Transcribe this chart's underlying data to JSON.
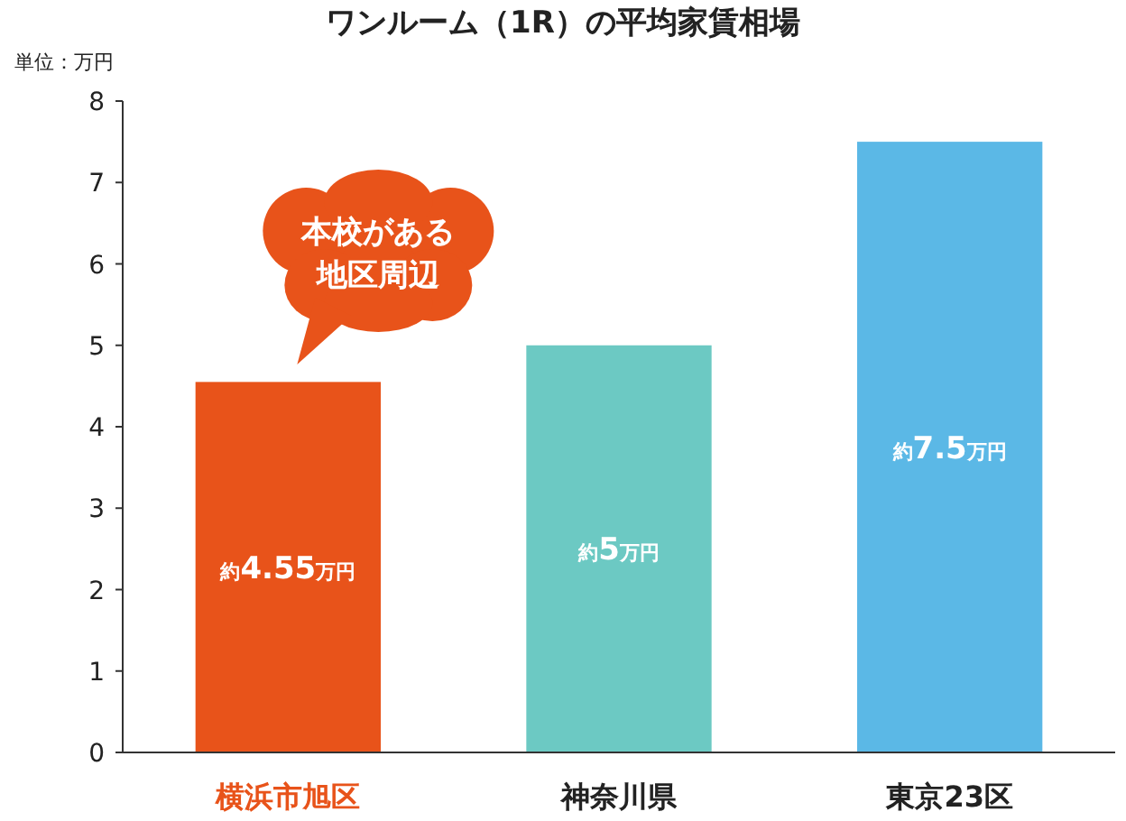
{
  "chart_data": {
    "type": "bar",
    "title": "ワンルーム（1R）の平均家賃相場",
    "ylabel": "単位：万円",
    "categories": [
      "横浜市旭区",
      "神奈川県",
      "東京23区"
    ],
    "values": [
      4.55,
      5,
      7.5
    ],
    "colors": [
      "#e8531a",
      "#6cc9c3",
      "#5bb8e6"
    ],
    "value_labels": [
      "約4.55万円",
      "約5万円",
      "約7.5万円"
    ],
    "ylim": [
      0,
      8
    ],
    "yticks": [
      0,
      1,
      2,
      3,
      4,
      5,
      6,
      7,
      8
    ],
    "grid": false,
    "annotations": [
      "本校がある地区周辺"
    ]
  }
}
